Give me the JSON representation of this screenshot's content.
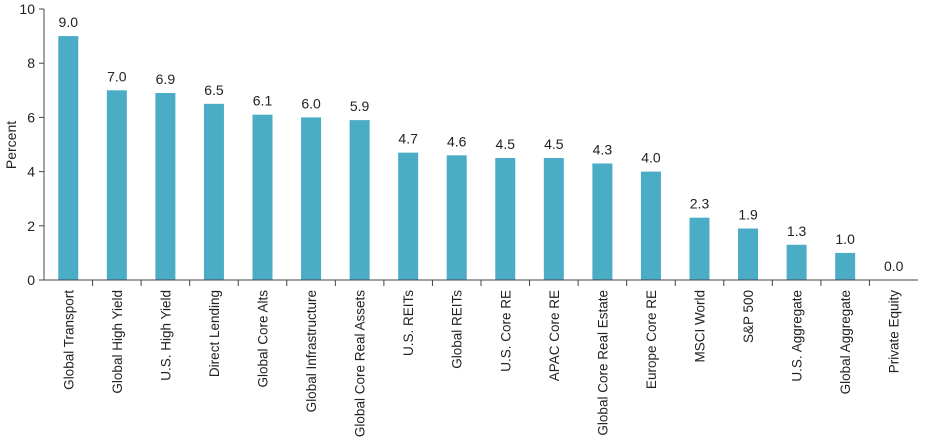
{
  "chart_data": {
    "type": "bar",
    "title": "",
    "xlabel": "",
    "ylabel": "Percent",
    "ylim": [
      0,
      10
    ],
    "yticks": [
      0,
      2,
      4,
      6,
      8,
      10
    ],
    "grid": false,
    "bar_color": "#4bacc6",
    "categories": [
      "Global Transport",
      "Global High Yield",
      "U.S. High Yield",
      "Direct Lending",
      "Global Core Alts",
      "Global Infrastructure",
      "Global Core Real Assets",
      "U.S. REITs",
      "Global REITs",
      "U.S. Core RE",
      "APAC Core RE",
      "Global Core Real Estate",
      "Europe Core RE",
      "MSCI World",
      "S&P 500",
      "U.S. Aggregate",
      "Global Aggregate",
      "Private Equity"
    ],
    "values": [
      9.0,
      7.0,
      6.9,
      6.5,
      6.1,
      6.0,
      5.9,
      4.7,
      4.6,
      4.5,
      4.5,
      4.3,
      4.0,
      2.3,
      1.9,
      1.3,
      1.0,
      0.0
    ],
    "value_labels": [
      "9.0",
      "7.0",
      "6.9",
      "6.5",
      "6.1",
      "6.0",
      "5.9",
      "4.7",
      "4.6",
      "4.5",
      "4.5",
      "4.3",
      "4.0",
      "2.3",
      "1.9",
      "1.3",
      "1.0",
      "0.0"
    ]
  }
}
